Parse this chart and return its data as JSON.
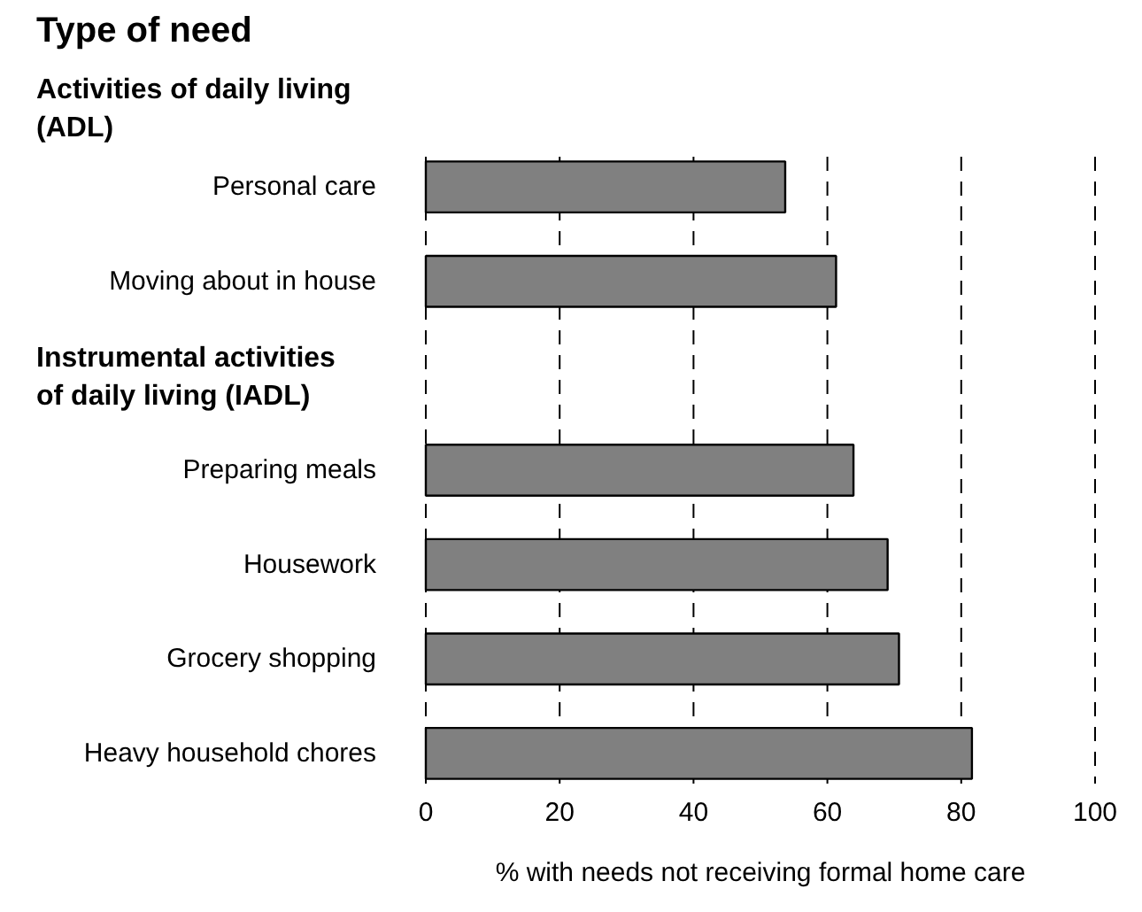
{
  "chart_data": {
    "type": "bar",
    "orientation": "horizontal",
    "title": "Type of need",
    "categories": [
      "Personal care",
      "Moving about in house",
      null,
      "Preparing meals",
      "Housework",
      "Grocery shopping",
      "Heavy household chores"
    ],
    "values": [
      53.7,
      61.3,
      null,
      63.9,
      69.0,
      70.7,
      81.6
    ],
    "color": "#808080",
    "annotations": [
      "Activities of daily living\n(ADL)",
      "Instrumental activities\nof daily living (IADL)"
    ],
    "xlabel": "% with needs not receiving formal home care",
    "xlim": [
      0,
      100
    ],
    "xticks": [
      0,
      20,
      40,
      60,
      80,
      100
    ],
    "grid": "x"
  }
}
